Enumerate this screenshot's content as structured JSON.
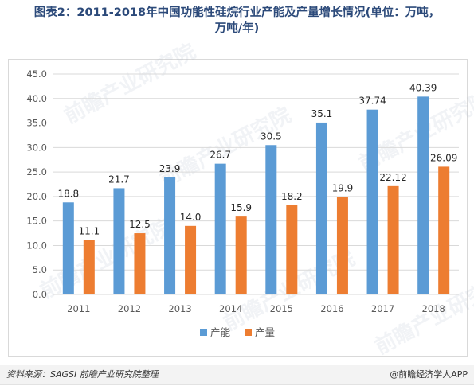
{
  "title_line1": "图表2：2011-2018年中国功能性硅烷行业产能及产量增长情况(单位：万吨，",
  "title_line2": "万吨/年)",
  "footer": {
    "source": "资料来源：SAGSI 前瞻产业研究院整理",
    "brand": "@前瞻经济学人APP"
  },
  "watermark": "前瞻产业研究院",
  "colors": {
    "capacity": "#5b9bd5",
    "output": "#ed7d31",
    "grid": "#d9d9d9",
    "text": "#595959"
  },
  "chart_data": {
    "type": "bar",
    "categories": [
      "2011",
      "2012",
      "2013",
      "2014",
      "2015",
      "2016",
      "2017",
      "2018"
    ],
    "series": [
      {
        "name": "产能",
        "values": [
          18.8,
          21.7,
          23.9,
          26.7,
          30.5,
          35.1,
          37.74,
          40.39
        ],
        "labels": [
          "18.8",
          "21.7",
          "23.9",
          "26.7",
          "30.5",
          "35.1",
          "37.74",
          "40.39"
        ]
      },
      {
        "name": "产量",
        "values": [
          11.1,
          12.5,
          14.0,
          15.9,
          18.2,
          19.9,
          22.12,
          26.09
        ],
        "labels": [
          "11.1",
          "12.5",
          "14.0",
          "15.9",
          "18.2",
          "19.9",
          "22.12",
          "26.09"
        ]
      }
    ],
    "ylim": [
      0,
      45
    ],
    "yticks": [
      "0.0",
      "5.0",
      "10.0",
      "15.0",
      "20.0",
      "25.0",
      "30.0",
      "35.0",
      "40.0",
      "45.0"
    ],
    "grid": true,
    "legend": "bottom"
  }
}
